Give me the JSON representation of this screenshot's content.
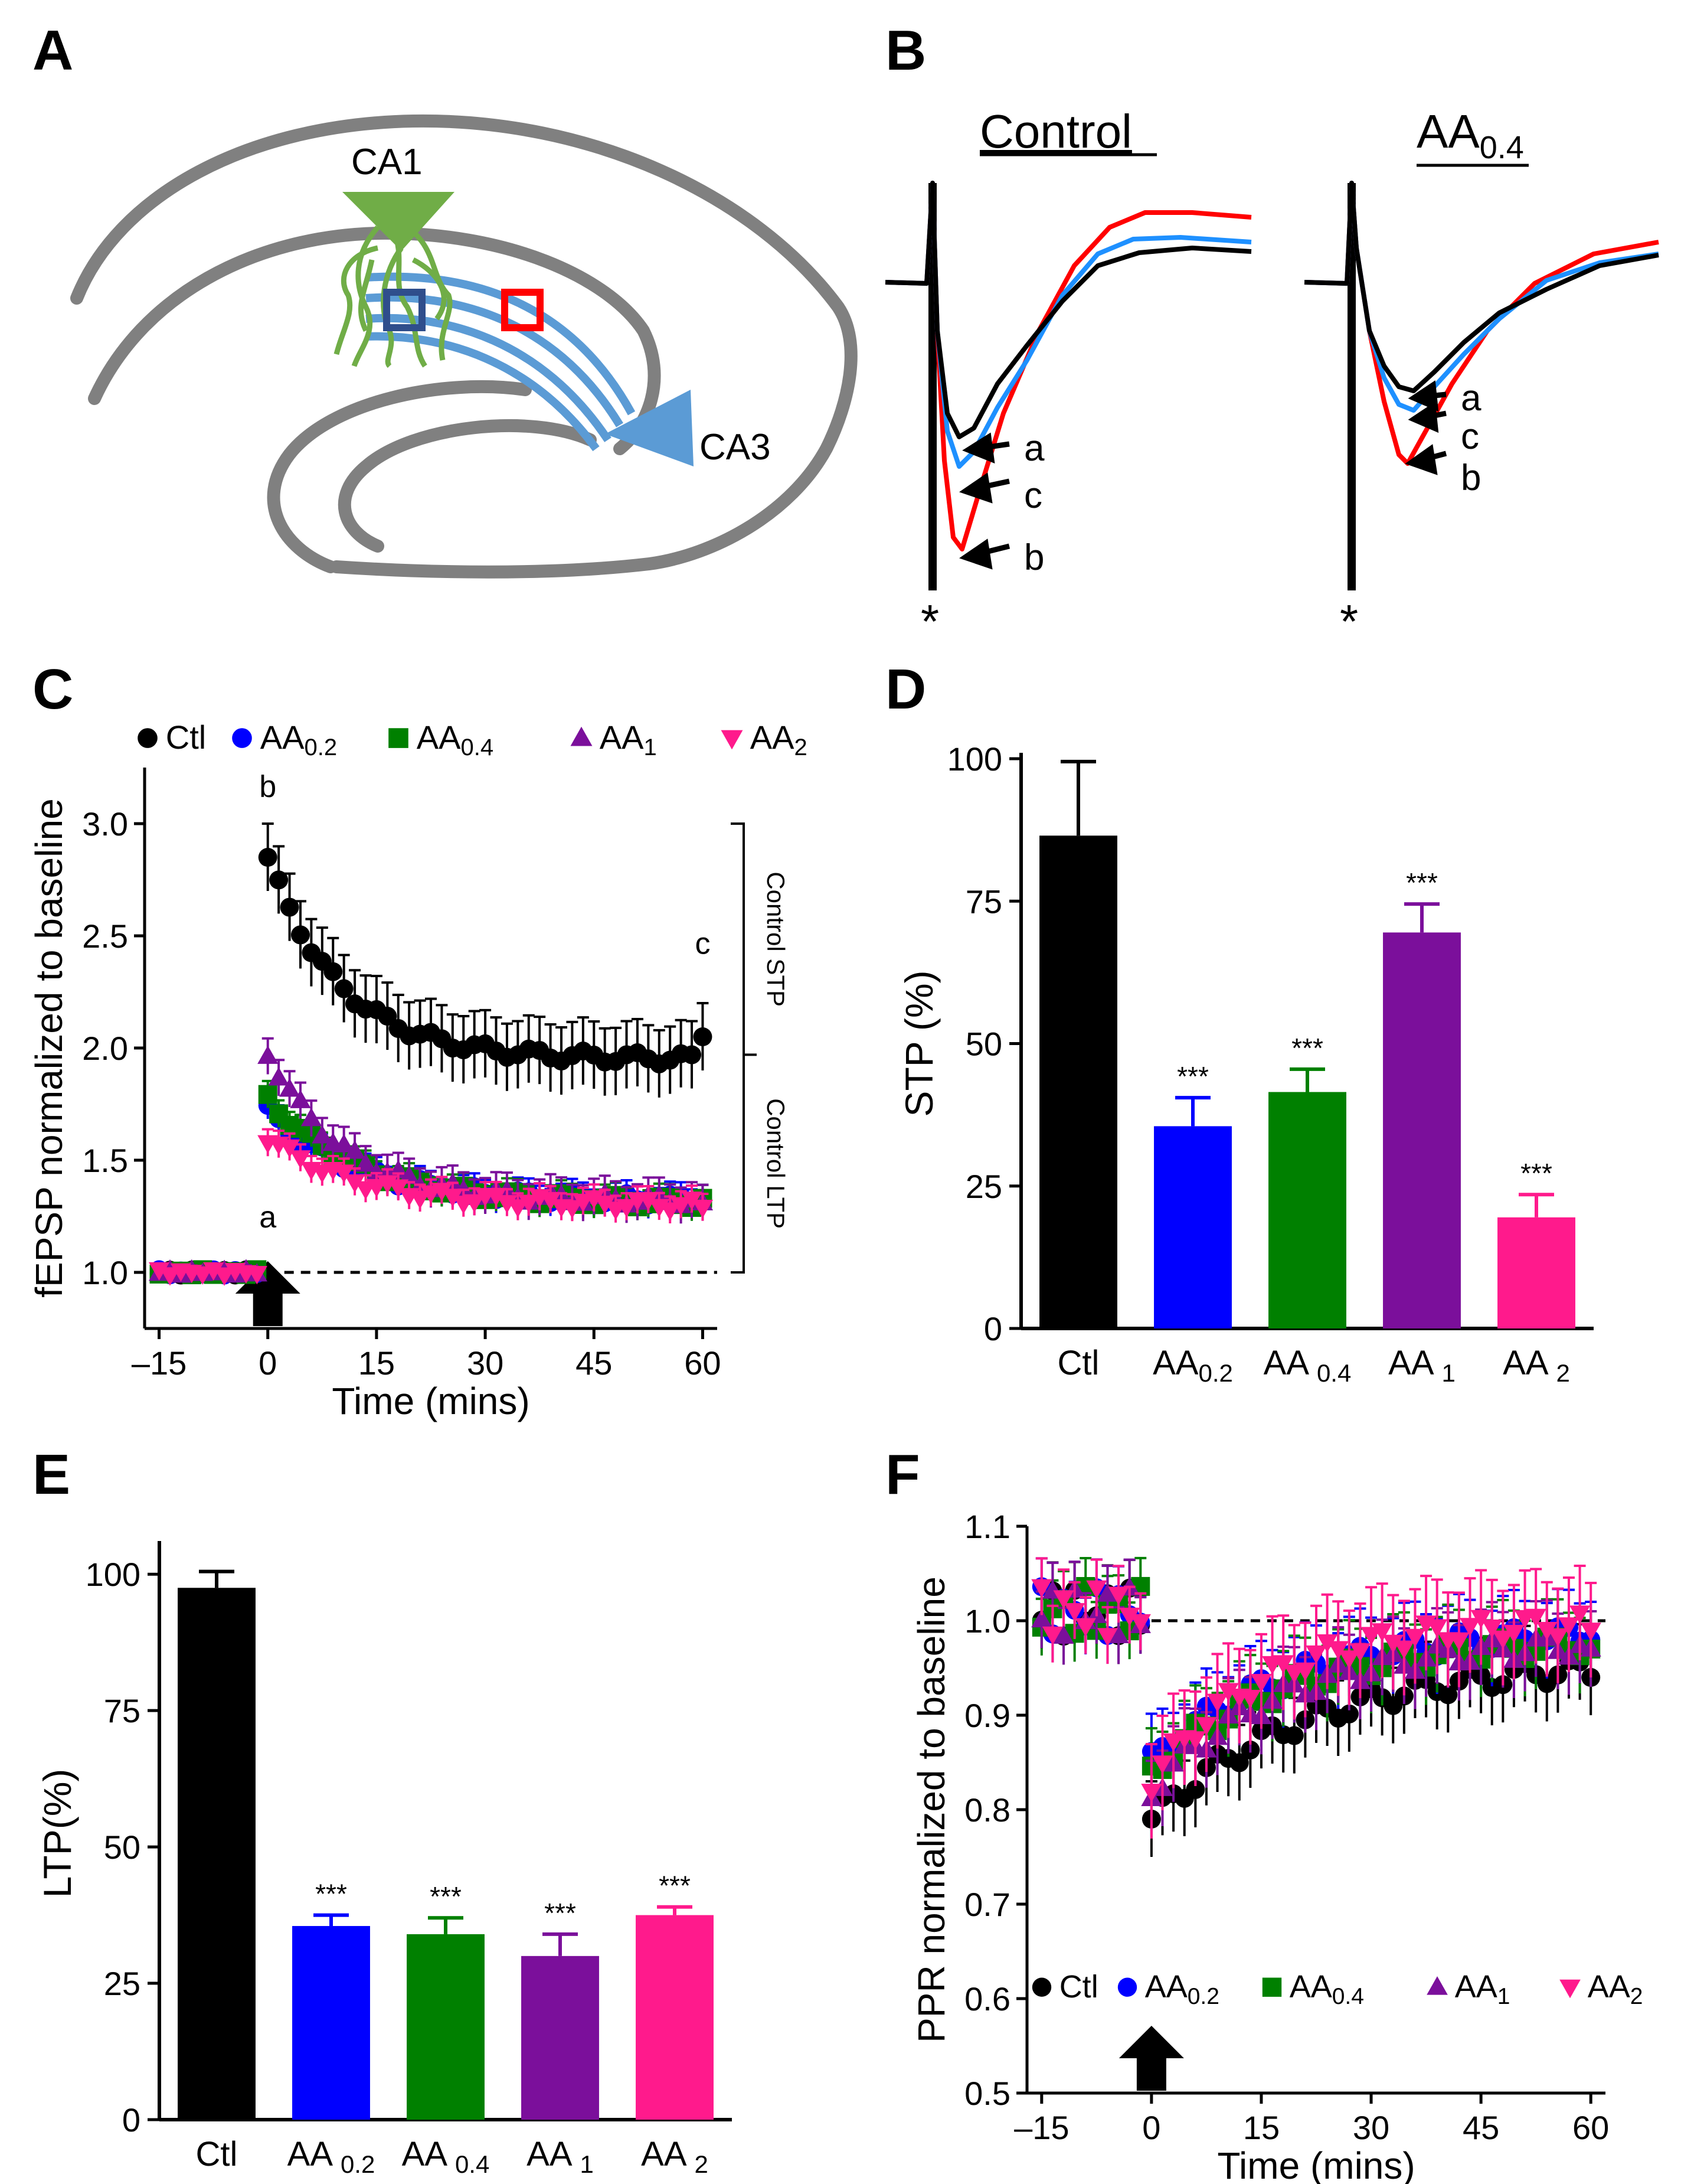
{
  "panels": {
    "A": {
      "letter": "A",
      "ca1": "CA1",
      "ca3": "CA3"
    },
    "B": {
      "letter": "B",
      "control": "Control",
      "aa_main": "AA",
      "aa_sub": "0.4",
      "star": "*",
      "labels_control": [
        "a",
        "c",
        "b"
      ],
      "labels_aa": [
        "a",
        "c",
        "b"
      ]
    },
    "C": {
      "letter": "C"
    },
    "D": {
      "letter": "D"
    },
    "E": {
      "letter": "E"
    },
    "F": {
      "letter": "F"
    }
  },
  "legend": [
    {
      "main": "Ctl",
      "sub": "",
      "color": "#000000",
      "marker": "circle"
    },
    {
      "main": "AA",
      "sub": "0.2",
      "color": "#0000ff",
      "marker": "circle"
    },
    {
      "main": "AA",
      "sub": "0.4",
      "color": "#008000",
      "marker": "square"
    },
    {
      "main": "AA",
      "sub": "1",
      "color": "#7b0f9b",
      "marker": "triangle-up"
    },
    {
      "main": "AA",
      "sub": "2",
      "color": "#ff1a8c",
      "marker": "triangle-down"
    }
  ],
  "chart_data": [
    {
      "id": "C",
      "type": "scatter",
      "xlabel": "Time (mins)",
      "ylabel": "fEPSP normalized to baseline",
      "xlim": [
        -17,
        62
      ],
      "ylim": [
        0.75,
        3.25
      ],
      "xticks": [
        {
          "v": -15,
          "t": "–15"
        },
        {
          "v": 0,
          "t": "0"
        },
        {
          "v": 15,
          "t": "15"
        },
        {
          "v": 30,
          "t": "30"
        },
        {
          "v": 45,
          "t": "45"
        },
        {
          "v": 60,
          "t": "60"
        }
      ],
      "yticks": [
        {
          "v": 1.0,
          "t": "1.0"
        },
        {
          "v": 1.5,
          "t": "1.5"
        },
        {
          "v": 2.0,
          "t": "2.0"
        },
        {
          "v": 2.5,
          "t": "2.5"
        },
        {
          "v": 3.0,
          "t": "3.0"
        }
      ],
      "reference_line": 1.0,
      "bracket_labels": [
        "Control STP",
        "Control LTP"
      ],
      "annotations": [
        {
          "text": "a",
          "x": 0,
          "y": 1.2
        },
        {
          "text": "b",
          "x": 0,
          "y": 3.12
        },
        {
          "text": "c",
          "x": 60,
          "y": 2.42
        }
      ],
      "baseline": {
        "x_start": -15,
        "x_end": -1,
        "value": 1.0
      },
      "series": [
        {
          "name": "Ctl",
          "start": 2.85,
          "plateau": 1.95,
          "tau": 10,
          "end": 2.05,
          "err": 0.15
        },
        {
          "name": "AA0.2",
          "start": 1.72,
          "plateau": 1.32,
          "tau": 12,
          "end": 1.33,
          "err": 0.06
        },
        {
          "name": "AA0.4",
          "start": 1.78,
          "plateau": 1.31,
          "tau": 12,
          "end": 1.33,
          "err": 0.06
        },
        {
          "name": "AA1",
          "start": 1.98,
          "plateau": 1.32,
          "tau": 10,
          "end": 1.31,
          "err": 0.08
        },
        {
          "name": "AA2",
          "start": 1.6,
          "plateau": 1.3,
          "tau": 12,
          "end": 1.29,
          "err": 0.06
        }
      ]
    },
    {
      "id": "D",
      "type": "bar",
      "ylabel": "STP (%)",
      "ylim": [
        0,
        100
      ],
      "yticks": [
        0,
        25,
        50,
        75,
        100
      ],
      "categories": [
        {
          "main": "Ctl",
          "sub": ""
        },
        {
          "main": "AA",
          "sub": "0.2"
        },
        {
          "main": "AA ",
          "sub": "0.4"
        },
        {
          "main": "AA ",
          "sub": "1"
        },
        {
          "main": "AA ",
          "sub": "2"
        }
      ],
      "values": [
        86.5,
        35.5,
        41.5,
        69.5,
        19.5
      ],
      "errors": [
        13,
        5,
        4,
        5,
        4
      ],
      "significance": [
        "",
        "***",
        "***",
        "***",
        "***"
      ],
      "colors": [
        "#000000",
        "#0000ff",
        "#008000",
        "#7b0f9b",
        "#ff1a8c"
      ]
    },
    {
      "id": "E",
      "type": "bar",
      "ylabel": "LTP(%)",
      "ylim": [
        0,
        105
      ],
      "yticks": [
        0,
        25,
        50,
        75,
        100
      ],
      "categories": [
        {
          "main": "Ctl",
          "sub": ""
        },
        {
          "main": "AA ",
          "sub": "0.2"
        },
        {
          "main": "AA ",
          "sub": "0.4"
        },
        {
          "main": "AA ",
          "sub": "1"
        },
        {
          "main": "AA ",
          "sub": "2"
        }
      ],
      "values": [
        97.5,
        35.5,
        34,
        30,
        37.5
      ],
      "errors": [
        3,
        2,
        3,
        4,
        1.5
      ],
      "significance": [
        "",
        "***",
        "***",
        "***",
        "***"
      ],
      "colors": [
        "#000000",
        "#0000ff",
        "#008000",
        "#7b0f9b",
        "#ff1a8c"
      ]
    },
    {
      "id": "F",
      "type": "scatter",
      "xlabel": "Time (mins)",
      "ylabel": "PPR normalized to baseline",
      "xlim": [
        -17,
        62
      ],
      "ylim": [
        0.5,
        1.1
      ],
      "xticks": [
        {
          "v": -15,
          "t": "–15"
        },
        {
          "v": 0,
          "t": "0"
        },
        {
          "v": 15,
          "t": "15"
        },
        {
          "v": 30,
          "t": "30"
        },
        {
          "v": 45,
          "t": "45"
        },
        {
          "v": 60,
          "t": "60"
        }
      ],
      "yticks": [
        {
          "v": 0.5,
          "t": "0.5"
        },
        {
          "v": 0.6,
          "t": "0.6"
        },
        {
          "v": 0.7,
          "t": "0.7"
        },
        {
          "v": 0.8,
          "t": "0.8"
        },
        {
          "v": 0.9,
          "t": "0.9"
        },
        {
          "v": 1.0,
          "t": "1.0"
        },
        {
          "v": 1.1,
          "t": "1.1"
        }
      ],
      "reference_line": 1.0,
      "baseline": {
        "x_start": -15,
        "x_end": -1,
        "value": 1.01
      },
      "series": [
        {
          "name": "Ctl",
          "start": 0.79,
          "plateau": 0.96,
          "tau": 22,
          "end": 0.94,
          "err": 0.04
        },
        {
          "name": "AA0.2",
          "start": 0.85,
          "plateau": 0.99,
          "tau": 18,
          "end": 0.98,
          "err": 0.04
        },
        {
          "name": "AA0.4",
          "start": 0.84,
          "plateau": 0.98,
          "tau": 18,
          "end": 0.97,
          "err": 0.04
        },
        {
          "name": "AA1",
          "start": 0.82,
          "plateau": 0.98,
          "tau": 18,
          "end": 0.97,
          "err": 0.04
        },
        {
          "name": "AA2",
          "start": 0.83,
          "plateau": 1.0,
          "tau": 15,
          "end": 0.99,
          "err": 0.05
        }
      ]
    }
  ]
}
